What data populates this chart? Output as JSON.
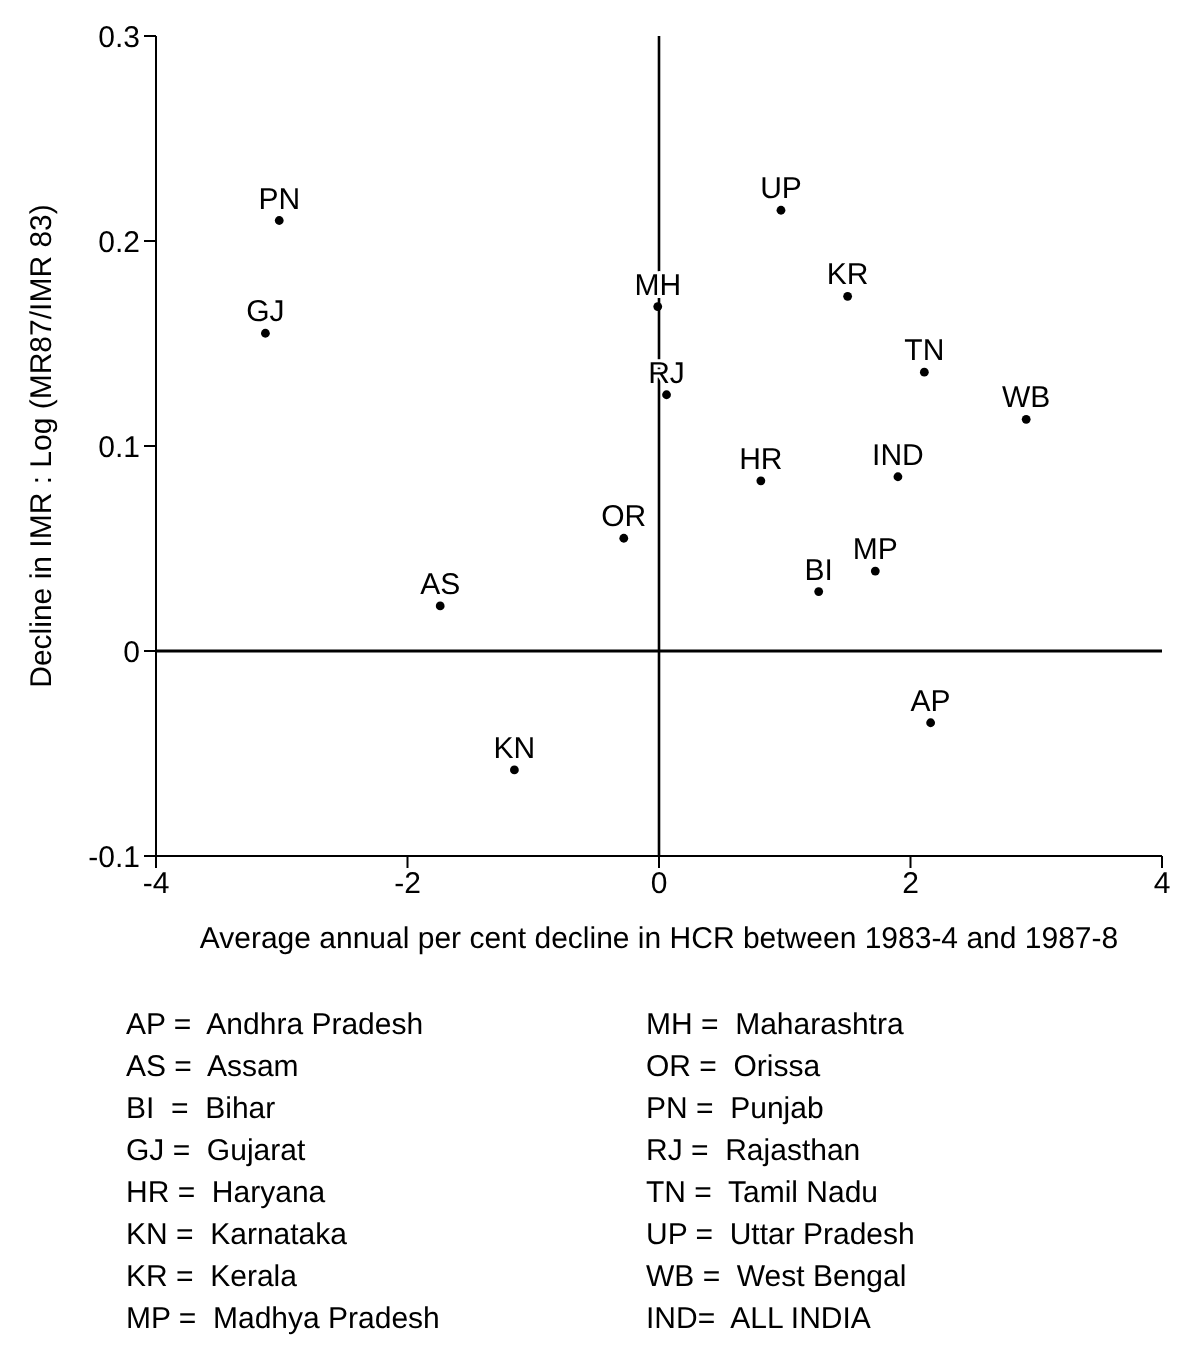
{
  "chart_data": {
    "type": "scatter",
    "xlabel": "Average annual per cent decline in HCR between 1983-4 and 1987-8",
    "ylabel": "Decline in IMR : Log (MR87/IMR 83)",
    "x": [
      -3.02,
      -3.13,
      -1.74,
      -1.15,
      -0.28,
      -0.01,
      0.06,
      0.97,
      1.5,
      2.11,
      2.92,
      0.81,
      1.9,
      1.27,
      1.72,
      2.16
    ],
    "series": [
      {
        "color": "#000000",
        "values": [
          0.21,
          0.155,
          0.022,
          -0.058,
          0.055,
          0.168,
          0.125,
          0.215,
          0.173,
          0.136,
          0.113,
          0.083,
          0.085,
          0.029,
          0.039,
          -0.035
        ]
      }
    ],
    "value_labels": [
      "PN",
      "GJ",
      "AS",
      "KN",
      "OR",
      "MH",
      "RJ",
      "UP",
      "KR",
      "TN",
      "WB",
      "HR",
      "IND",
      "BI",
      "MP",
      "AP"
    ],
    "marker": "circle",
    "grid": false,
    "legend": false,
    "xlim": [
      -4,
      4
    ],
    "xticks": [
      -4,
      -2,
      0,
      2,
      4
    ],
    "ylim": [
      -0.1,
      0.3
    ],
    "yticks": [
      -0.1,
      0,
      0.1,
      0.2,
      0.3
    ],
    "ref_lines": [
      {
        "axis": "x",
        "value": 0
      },
      {
        "axis": "y",
        "value": 0
      }
    ],
    "annotations": [
      "AP =  Andhra Pradesh",
      "AS =  Assam",
      "BI  =  Bihar",
      "GJ =  Gujarat",
      "HR =  Haryana",
      "KN =  Karnataka",
      "KR =  Kerala",
      "MP =  Madhya Pradesh",
      "MH =  Maharashtra",
      "OR =  Orissa",
      "PN =  Punjab",
      "RJ =  Rajasthan",
      "TN =  Tamil Nadu",
      "UP =  Uttar Pradesh",
      "WB =  West Bengal",
      "IND=  ALL INDIA"
    ]
  }
}
